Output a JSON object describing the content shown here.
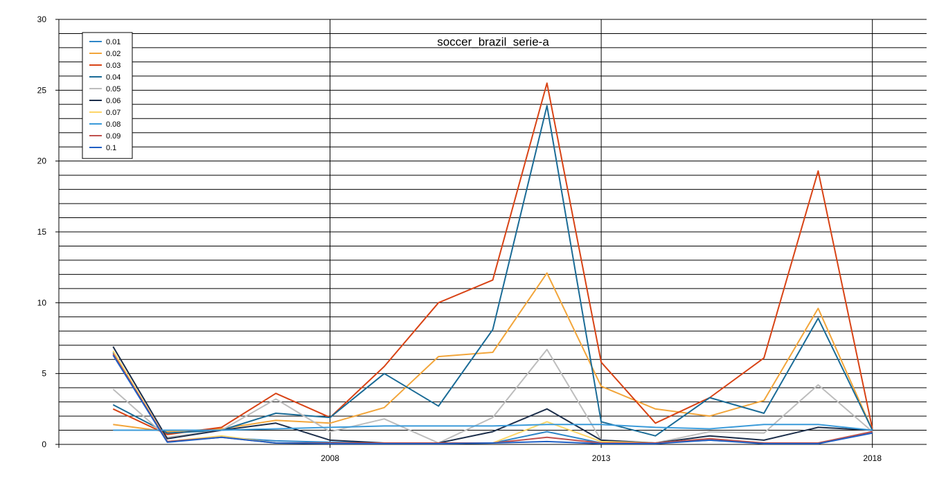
{
  "chart_data": {
    "type": "line",
    "title": "soccer_brazil_serie-a",
    "xlabel": "",
    "ylabel": "",
    "xlim": [
      2003,
      2019
    ],
    "ylim": [
      0,
      30
    ],
    "x_ticks": [
      "2008",
      "2013",
      "2018"
    ],
    "y_ticks": [
      "0",
      "5",
      "10",
      "15",
      "20",
      "25",
      "30"
    ],
    "grid": true,
    "legend_position": "top-left",
    "x": [
      2004,
      2005,
      2006,
      2007,
      2008,
      2009,
      2010,
      2011,
      2012,
      2013,
      2014,
      2015,
      2016,
      2017,
      2018
    ],
    "series": [
      {
        "name": "0.01",
        "color": "#2E86C8",
        "values": [
          6.5,
          0.2,
          0.5,
          0.25,
          0.15,
          0.1,
          0.05,
          0.1,
          0.9,
          0.1,
          0.1,
          0.3,
          0.1,
          0.1,
          0.9
        ]
      },
      {
        "name": "0.02",
        "color": "#F2A53A",
        "values": [
          1.4,
          0.9,
          1.1,
          1.7,
          1.5,
          2.6,
          6.2,
          6.5,
          12.1,
          4.1,
          2.5,
          2.0,
          3.1,
          9.6,
          1.0
        ]
      },
      {
        "name": "0.03",
        "color": "#D84315",
        "values": [
          2.5,
          0.7,
          1.2,
          3.6,
          1.9,
          5.5,
          10.0,
          11.6,
          25.5,
          5.8,
          1.5,
          3.3,
          6.1,
          19.3,
          1.1
        ]
      },
      {
        "name": "0.04",
        "color": "#1A6B96",
        "values": [
          2.8,
          0.8,
          1.0,
          2.2,
          1.9,
          5.0,
          2.7,
          8.1,
          23.9,
          1.6,
          0.6,
          3.3,
          2.2,
          8.9,
          1.0
        ]
      },
      {
        "name": "0.05",
        "color": "#BDBDBD",
        "values": [
          3.9,
          0.5,
          1.0,
          3.2,
          0.9,
          1.8,
          0.1,
          1.9,
          6.7,
          0.3,
          0.1,
          0.9,
          0.8,
          4.2,
          0.9
        ]
      },
      {
        "name": "0.06",
        "color": "#1C2E4A",
        "values": [
          6.9,
          0.4,
          1.0,
          1.5,
          0.3,
          0.1,
          0.1,
          0.9,
          2.5,
          0.3,
          0.1,
          0.6,
          0.3,
          1.2,
          1.0
        ]
      },
      {
        "name": "0.07",
        "color": "#FDD567",
        "values": [
          6.6,
          0.2,
          0.6,
          0.1,
          0.1,
          0.1,
          0.1,
          0.1,
          1.6,
          0.2,
          0.1,
          0.4,
          0.1,
          0.1,
          0.9
        ]
      },
      {
        "name": "0.08",
        "color": "#3A9AD9",
        "values": [
          1.0,
          1.0,
          1.0,
          1.1,
          1.2,
          1.3,
          1.3,
          1.3,
          1.4,
          1.4,
          1.2,
          1.1,
          1.4,
          1.4,
          1.0
        ]
      },
      {
        "name": "0.09",
        "color": "#C0504D",
        "values": [
          6.4,
          0.2,
          0.5,
          0.1,
          0.1,
          0.1,
          0.1,
          0.1,
          0.5,
          0.1,
          0.1,
          0.4,
          0.1,
          0.1,
          0.9
        ]
      },
      {
        "name": "0.1",
        "color": "#1F5FC4",
        "values": [
          6.3,
          0.15,
          0.5,
          0.1,
          0.05,
          0.05,
          0.05,
          0.1,
          0.2,
          0.05,
          0.05,
          0.3,
          0.05,
          0.05,
          0.8
        ]
      }
    ]
  }
}
